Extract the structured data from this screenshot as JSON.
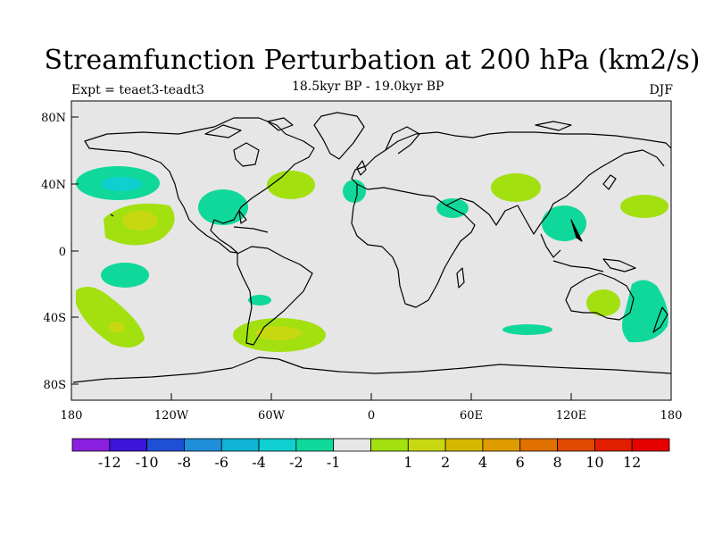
{
  "title": "Streamfunction Perturbation at 200 hPa (km2/s)",
  "left_label": "Expt = teaet3-teadt3",
  "center_label": "18.5kyr BP - 19.0kyr BP",
  "right_label": "DJF",
  "axes": {
    "lat_ticks": [
      "80N",
      "40N",
      "0",
      "40S",
      "80S"
    ],
    "lon_ticks": [
      "180",
      "120W",
      "60W",
      "0",
      "60E",
      "120E",
      "180"
    ]
  },
  "colorbar": {
    "colors": [
      "#8b1fe0",
      "#3b15d8",
      "#1f4fd5",
      "#1f8fdc",
      "#10b3d6",
      "#10cfd0",
      "#10d89a",
      "#e6e6e6",
      "#a2e010",
      "#c8d810",
      "#d6b800",
      "#df9c00",
      "#e07000",
      "#e04a00",
      "#e21e00",
      "#e60000"
    ],
    "labels": [
      "-12",
      "-10",
      "-8",
      "-6",
      "-4",
      "-2",
      "-1",
      "1",
      "2",
      "4",
      "6",
      "8",
      "10",
      "12"
    ]
  },
  "map_colors": {
    "background": "#e6e6e6",
    "pos_light": "#a2e010",
    "pos_mid": "#c8d810",
    "neg_light": "#10d89a",
    "neg_mid": "#10cfd0"
  }
}
